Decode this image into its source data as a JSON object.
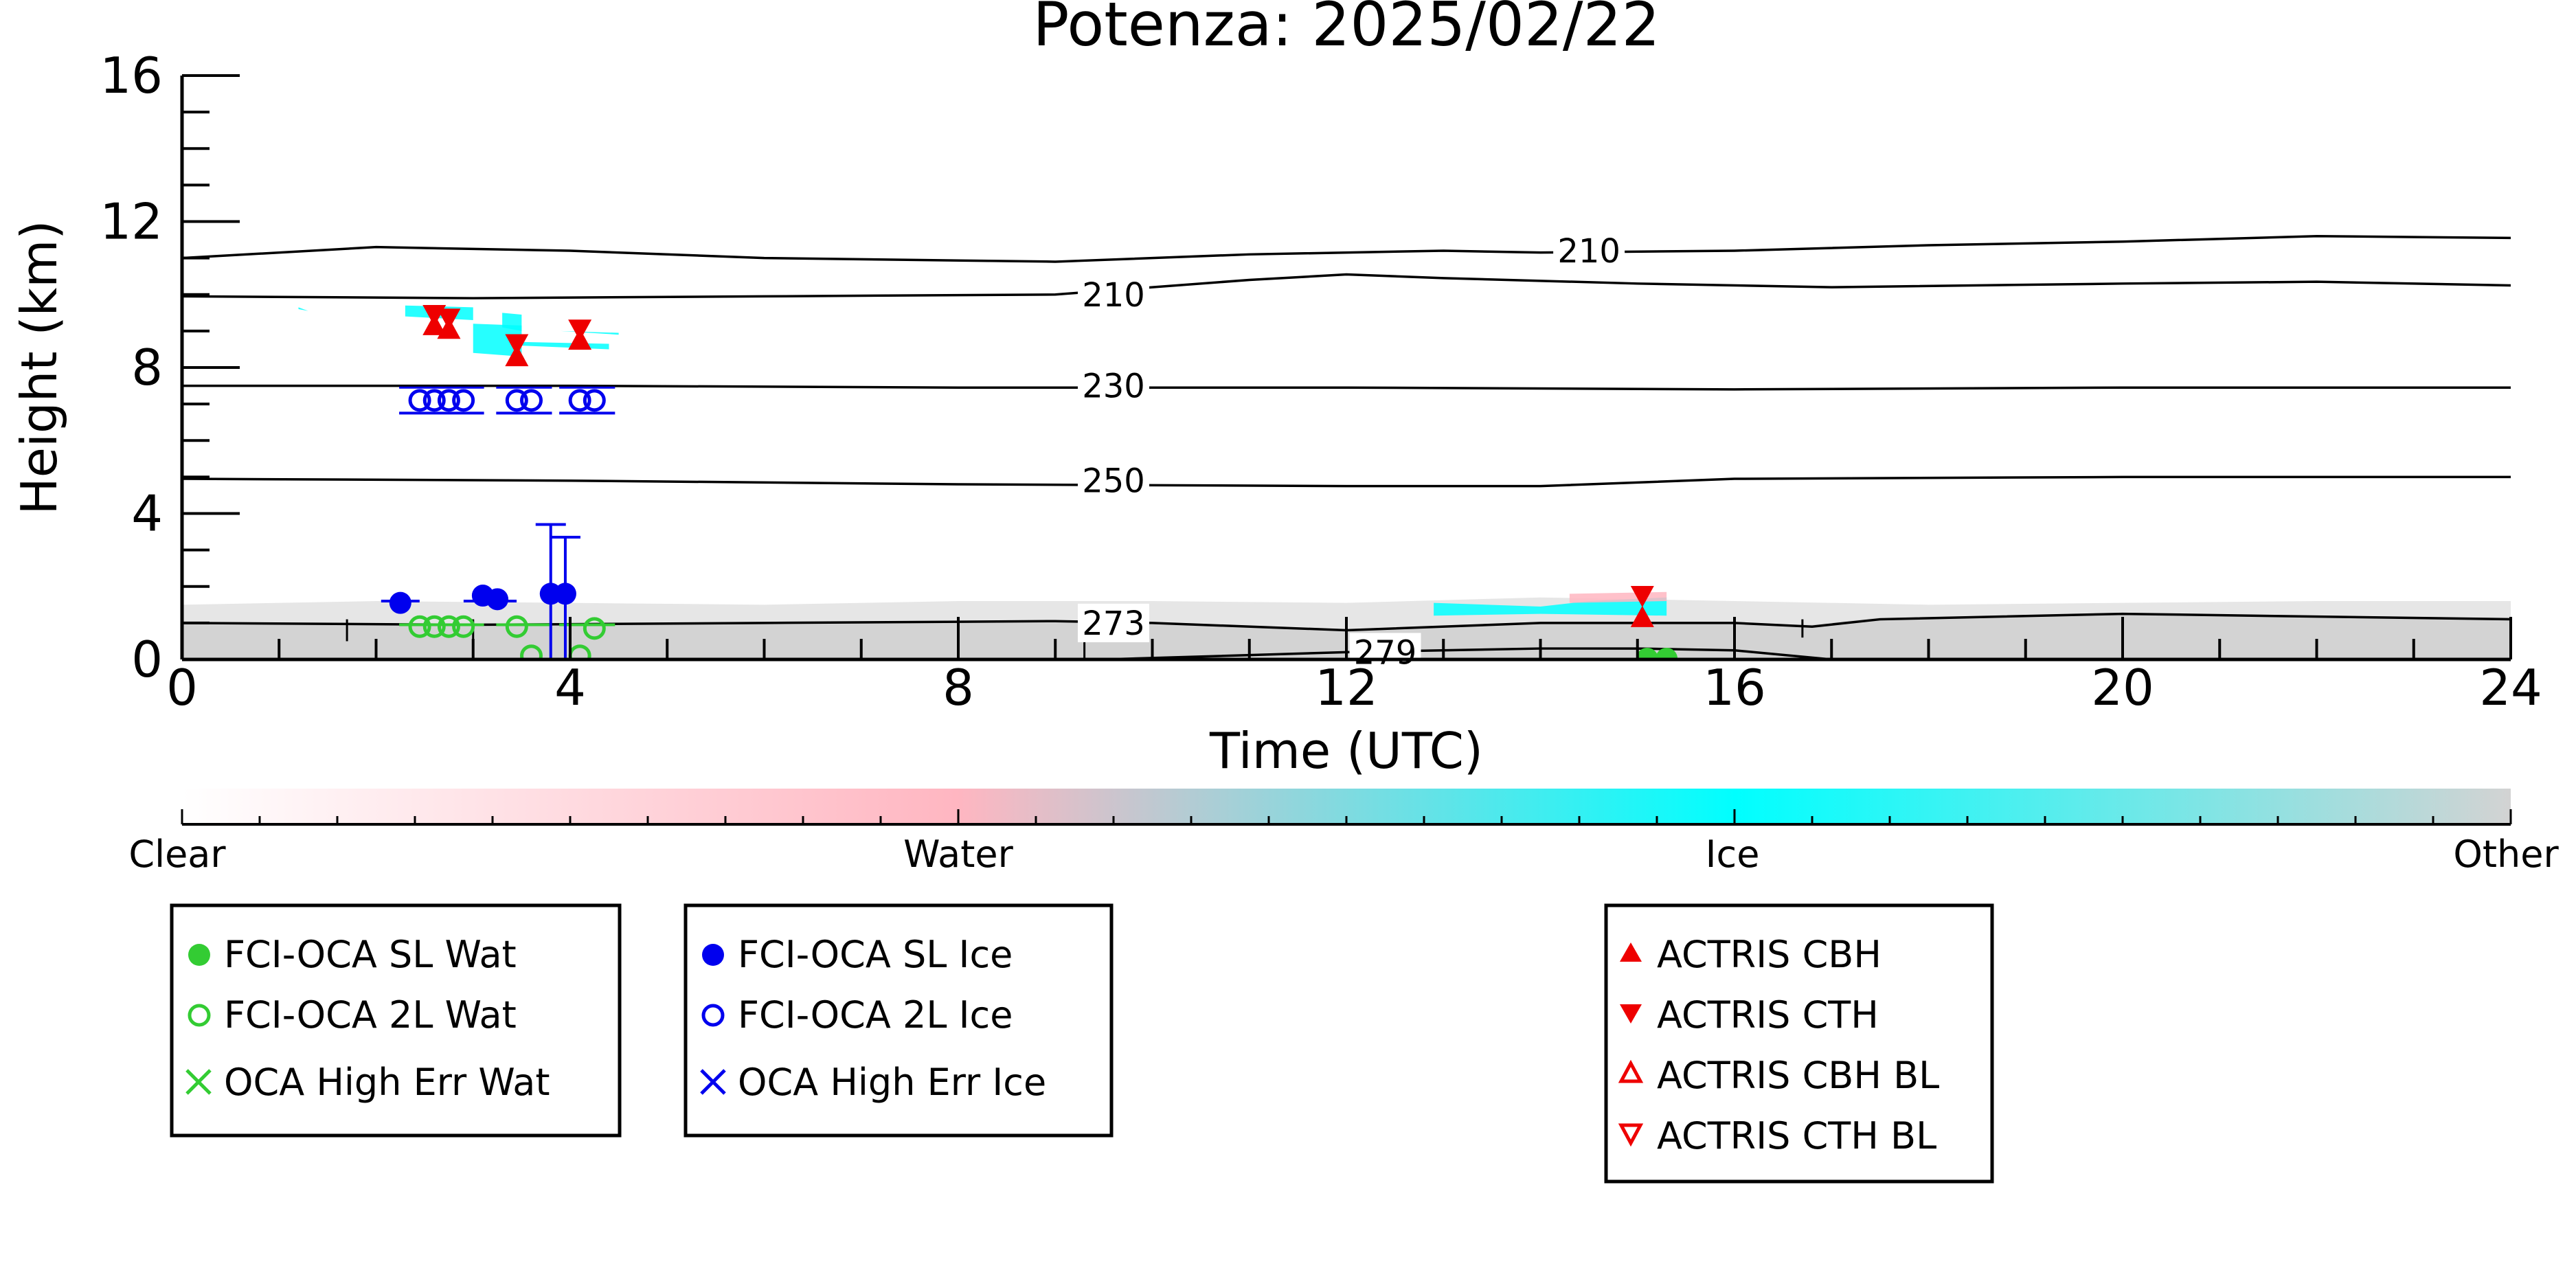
{
  "chart_data": {
    "type": "scatter",
    "title": "Potenza: 2025/02/22",
    "xlabel": "Time (UTC)",
    "ylabel": "Height (km)",
    "xlim": [
      0,
      24
    ],
    "ylim": [
      0,
      16
    ],
    "x_ticks": [
      "0",
      "4",
      "8",
      "12",
      "16",
      "20",
      "24"
    ],
    "y_ticks": [
      "0",
      "4",
      "8",
      "12",
      "16"
    ],
    "grid": false,
    "colorbar": {
      "labels": [
        "Clear",
        "Water",
        "Ice",
        "Other"
      ],
      "colors": [
        "#ffffff",
        "#ffb6c1",
        "#00ffff",
        "#d3d3d3"
      ]
    },
    "isotherms": [
      {
        "label": "210",
        "label_at": [
          14.5,
          11.2
        ],
        "points": [
          [
            0,
            11.0
          ],
          [
            2,
            11.3
          ],
          [
            4,
            11.2
          ],
          [
            6,
            11.0
          ],
          [
            9,
            10.9
          ],
          [
            11,
            11.1
          ],
          [
            13,
            11.2
          ],
          [
            14,
            11.15
          ],
          [
            16,
            11.2
          ],
          [
            18,
            11.35
          ],
          [
            20,
            11.45
          ],
          [
            22,
            11.6
          ],
          [
            24,
            11.55
          ]
        ]
      },
      {
        "label": "210",
        "label_at": [
          9.6,
          10.0
        ],
        "points": [
          [
            0,
            9.95
          ],
          [
            3,
            9.9
          ],
          [
            6,
            9.95
          ],
          [
            9,
            10.0
          ],
          [
            11,
            10.4
          ],
          [
            12,
            10.55
          ],
          [
            13,
            10.45
          ],
          [
            15,
            10.3
          ],
          [
            17,
            10.2
          ],
          [
            20,
            10.3
          ],
          [
            22,
            10.35
          ],
          [
            24,
            10.25
          ]
        ]
      },
      {
        "label": "230",
        "label_at": [
          9.6,
          7.5
        ],
        "points": [
          [
            0,
            7.5
          ],
          [
            4,
            7.5
          ],
          [
            8,
            7.45
          ],
          [
            12,
            7.45
          ],
          [
            16,
            7.4
          ],
          [
            20,
            7.45
          ],
          [
            24,
            7.45
          ]
        ]
      },
      {
        "label": "250",
        "label_at": [
          9.6,
          4.9
        ],
        "points": [
          [
            0,
            4.95
          ],
          [
            4,
            4.9
          ],
          [
            8,
            4.8
          ],
          [
            12,
            4.75
          ],
          [
            14,
            4.75
          ],
          [
            16,
            4.95
          ],
          [
            20,
            5.0
          ],
          [
            24,
            5.0
          ]
        ]
      },
      {
        "label": "273",
        "label_at": [
          9.6,
          1.0
        ],
        "points": [
          [
            0,
            1.0
          ],
          [
            3,
            0.95
          ],
          [
            6,
            1.0
          ],
          [
            9,
            1.05
          ],
          [
            10,
            1.0
          ],
          [
            12,
            0.8
          ],
          [
            14,
            1.0
          ],
          [
            16,
            1.0
          ],
          [
            16.8,
            0.9
          ],
          [
            17.5,
            1.1
          ],
          [
            20,
            1.25
          ],
          [
            24,
            1.1
          ]
        ]
      },
      {
        "label": "279",
        "label_at": [
          12.4,
          0.2
        ],
        "points": [
          [
            9.5,
            0.0
          ],
          [
            12,
            0.2
          ],
          [
            14,
            0.3
          ],
          [
            15,
            0.3
          ],
          [
            16,
            0.25
          ],
          [
            17,
            0.0
          ]
        ]
      }
    ],
    "series": [
      {
        "name": "FCI-OCA SL Wat",
        "color": "#33cc33",
        "marker": "filled-circle",
        "points": [
          [
            15.1,
            0.02
          ],
          [
            15.3,
            0.02
          ]
        ]
      },
      {
        "name": "FCI-OCA 2L Wat",
        "color": "#33cc33",
        "marker": "open-circle",
        "points": [
          [
            2.45,
            0.9
          ],
          [
            2.6,
            0.9
          ],
          [
            2.75,
            0.9
          ],
          [
            2.9,
            0.9
          ],
          [
            3.45,
            0.9
          ],
          [
            3.6,
            0.1
          ],
          [
            4.1,
            0.1
          ],
          [
            4.25,
            0.85
          ]
        ]
      },
      {
        "name": "OCA High Err Wat",
        "color": "#33cc33",
        "marker": "x",
        "points": []
      },
      {
        "name": "FCI-OCA SL Ice",
        "color": "#0000ee",
        "marker": "filled-circle",
        "points": [
          [
            2.25,
            1.55
          ],
          [
            3.1,
            1.75
          ],
          [
            3.25,
            1.65
          ],
          [
            3.8,
            1.8
          ],
          [
            3.95,
            1.8
          ]
        ]
      },
      {
        "name": "FCI-OCA 2L Ice",
        "color": "#0000ee",
        "marker": "open-circle",
        "points": [
          [
            2.45,
            7.1
          ],
          [
            2.6,
            7.1
          ],
          [
            2.75,
            7.1
          ],
          [
            2.9,
            7.1
          ],
          [
            3.45,
            7.1
          ],
          [
            3.6,
            7.1
          ],
          [
            4.1,
            7.1
          ],
          [
            4.25,
            7.1
          ]
        ]
      },
      {
        "name": "OCA High Err Ice",
        "color": "#0000ee",
        "marker": "x",
        "points": []
      },
      {
        "name": "ACTRIS CBH",
        "color": "#ee0000",
        "marker": "triangle-up",
        "points": [
          [
            2.6,
            9.15
          ],
          [
            2.75,
            9.05
          ],
          [
            3.45,
            8.3
          ],
          [
            4.1,
            8.75
          ],
          [
            15.05,
            1.15
          ]
        ]
      },
      {
        "name": "ACTRIS CTH",
        "color": "#ee0000",
        "marker": "triangle-down",
        "points": [
          [
            2.6,
            9.45
          ],
          [
            2.75,
            9.35
          ],
          [
            3.45,
            8.65
          ],
          [
            4.1,
            9.05
          ],
          [
            15.05,
            1.75
          ]
        ]
      },
      {
        "name": "ACTRIS CBH BL",
        "color": "#ee0000",
        "marker": "open-triangle-up",
        "points": []
      },
      {
        "name": "ACTRIS CTH BL",
        "color": "#ee0000",
        "marker": "open-triangle-down",
        "points": []
      }
    ]
  }
}
